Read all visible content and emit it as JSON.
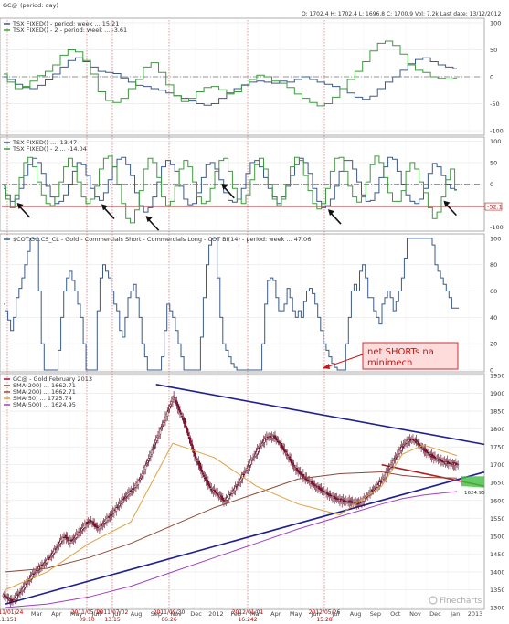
{
  "header": {
    "symbol": "GC@",
    "period_label": "(period: day)",
    "ohlc": "O: 1702.4   H: 1702.4   L: 1696.8   C: 1700.9   Vol: 7.2k   Last date: 13/12/2012"
  },
  "watermark": "Finecharts",
  "annotation": {
    "line1": "net SHORTs na",
    "line2": "minimech"
  },
  "colors": {
    "blue_line": "#3a5a8a",
    "green_line": "#3c9a3c",
    "red_line": "#b02020",
    "candle_up": "#ffffff",
    "candle_down": "#a0103a",
    "sma200": "#8b4a3a",
    "sma50": "#e0a040",
    "sma500": "#a040c0",
    "trend": "#202090",
    "box_fill": "#ffdcdc",
    "box_border": "#d03030",
    "green_box": "#40c040"
  },
  "x_labels": [
    "Mar",
    "Apr",
    "May",
    "Jun",
    "Jul",
    "Aug",
    "Sep",
    "Nov",
    "Dec",
    "2012",
    "Feb",
    "Mar",
    "Apr",
    "May",
    "Jun",
    "Jul",
    "Aug",
    "Sep",
    "Oct",
    "Nov",
    "Dec",
    "Jan",
    "2013"
  ],
  "date_labels": [
    {
      "line1": "2011/01/24",
      "line2": "11:151"
    },
    {
      "line1": "2011/05/16",
      "line2": "09:10"
    },
    {
      "line1": "2011/07/02",
      "line2": "13:15"
    },
    {
      "line1": "2011/09/30",
      "line2": "06:26"
    },
    {
      "line1": "2012/01/01",
      "line2": "16:242"
    },
    {
      "line1": "2012/05/26",
      "line2": "15:28"
    }
  ],
  "chart_data": [
    {
      "type": "line",
      "panel": "tsx_weekly",
      "legend": [
        "TSX FIXED() - period: week ... 15.21",
        "TSX FIXED() - 2 - period: week ... -3.61"
      ],
      "yticks": [
        100,
        50,
        0,
        -50,
        -100
      ],
      "ylim": [
        -105,
        105
      ],
      "reference_line": 0,
      "series": [
        {
          "name": "TSX FIXED()",
          "color": "#3a5a8a",
          "values": [
            0,
            -5,
            -14,
            -20,
            -22,
            -16,
            -6,
            5,
            18,
            30,
            35,
            28,
            18,
            10,
            8,
            6,
            -2,
            -10,
            -16,
            -18,
            -22,
            -25,
            -30,
            -35,
            -40,
            -45,
            -50,
            -53,
            -50,
            -40,
            -30,
            -22,
            -15,
            -10,
            -8,
            -10,
            -12,
            -8,
            -10,
            -5,
            0,
            -5,
            -10,
            -14,
            -18,
            -22,
            -30,
            -38,
            -42,
            -36,
            -22,
            -10,
            0,
            12,
            24,
            32,
            35,
            28,
            22,
            18,
            15
          ]
        },
        {
          "name": "TSX FIXED() - 2",
          "color": "#3c9a3c",
          "values": [
            5,
            -10,
            -22,
            -18,
            -8,
            2,
            10,
            22,
            40,
            50,
            46,
            30,
            5,
            -28,
            -44,
            -48,
            -40,
            -22,
            -5,
            18,
            26,
            8,
            -15,
            -35,
            -46,
            -40,
            -28,
            -20,
            -18,
            -24,
            -32,
            -28,
            -16,
            -5,
            3,
            0,
            -8,
            -12,
            -20,
            -32,
            -40,
            -48,
            -54,
            -50,
            -38,
            -22,
            -5,
            10,
            28,
            48,
            62,
            66,
            58,
            42,
            22,
            12,
            8,
            0,
            -3,
            -4,
            -3
          ]
        }
      ]
    },
    {
      "type": "line",
      "panel": "tsx_daily",
      "legend": [
        "TSX FIXED() ... -13.47",
        "TSX FIXED() - 2 ... -14.04"
      ],
      "yticks": [
        100,
        50,
        0,
        -50,
        -100
      ],
      "ylim": [
        -105,
        105
      ],
      "reference_line": 0,
      "threshold": -52.1,
      "threshold_label": "-52.1",
      "arrows_at_x": [
        2,
        13,
        19,
        29,
        43,
        58
      ],
      "series": [
        {
          "name": "TSX FIXED()",
          "color": "#3a5a8a",
          "values": [
            -10,
            -25,
            -40,
            -35,
            -10,
            20,
            45,
            60,
            50,
            25,
            -5,
            -30,
            -45,
            -40,
            -25,
            0,
            30,
            50,
            45,
            20,
            -10,
            -30,
            -38,
            -20,
            10,
            40,
            58,
            62,
            45,
            20,
            -20,
            -50,
            -65,
            -55,
            -30,
            5,
            40,
            55,
            45,
            30,
            -5,
            -35,
            -48,
            -45,
            -20,
            15,
            45,
            50,
            35,
            10,
            -20,
            -38,
            -42,
            -35,
            -10,
            25,
            50,
            55,
            40,
            15,
            -10,
            -30,
            -45,
            -30,
            -5,
            20,
            45,
            60,
            50,
            25,
            -10,
            -40,
            -55,
            -50,
            -35,
            -5,
            30,
            55,
            55,
            35,
            5,
            -25,
            -40,
            -38,
            -20,
            15,
            40,
            62,
            58,
            30,
            0,
            -25,
            -40,
            -45,
            -35,
            -10,
            25,
            48,
            40,
            20,
            0,
            -10,
            -13
          ]
        },
        {
          "name": "TSX FIXED() - 2",
          "color": "#3c9a3c",
          "values": [
            -5,
            -35,
            -55,
            -25,
            15,
            50,
            62,
            40,
            5,
            -25,
            -45,
            -50,
            -30,
            5,
            40,
            60,
            40,
            5,
            -30,
            -45,
            -35,
            -5,
            35,
            60,
            65,
            40,
            0,
            -45,
            -80,
            -90,
            -60,
            -15,
            35,
            60,
            50,
            15,
            -30,
            -50,
            -40,
            -5,
            35,
            55,
            40,
            5,
            -30,
            -45,
            -40,
            -10,
            30,
            55,
            60,
            30,
            -10,
            -35,
            -45,
            -25,
            10,
            45,
            60,
            35,
            0,
            -35,
            -50,
            -35,
            0,
            40,
            62,
            55,
            20,
            -15,
            -45,
            -58,
            -45,
            -10,
            30,
            60,
            62,
            30,
            -5,
            -30,
            -42,
            -30,
            5,
            45,
            65,
            50,
            15,
            -20,
            -40,
            -40,
            -15,
            30,
            50,
            35,
            5,
            -20,
            -55,
            -80,
            -65,
            -30,
            10,
            35,
            -14
          ]
        }
      ]
    },
    {
      "type": "line",
      "panel": "cot",
      "legend": [
        "$COT.GC.CS_CL - Gold - Commercials Short - Commercials Long - COT BI(14) - period: week ... 47.06"
      ],
      "yticks": [
        100,
        80,
        60,
        40,
        20,
        0
      ],
      "ylim": [
        0,
        102
      ],
      "series": [
        {
          "name": "$COT.GC.CS_CL",
          "color": "#3a5a8a",
          "values": [
            50,
            45,
            38,
            30,
            40,
            55,
            62,
            70,
            80,
            90,
            100,
            100,
            100,
            60,
            20,
            0,
            0,
            0,
            0,
            0,
            15,
            40,
            60,
            70,
            75,
            68,
            60,
            50,
            40,
            20,
            0,
            0,
            0,
            0,
            45,
            70,
            80,
            75,
            70,
            60,
            50,
            45,
            30,
            25,
            40,
            55,
            60,
            65,
            55,
            40,
            20,
            10,
            0,
            0,
            0,
            0,
            0,
            10,
            30,
            50,
            45,
            40,
            30,
            20,
            10,
            0,
            0,
            0,
            0,
            0,
            0,
            25,
            55,
            80,
            95,
            100,
            100,
            70,
            40,
            20,
            15,
            10,
            5,
            2,
            0,
            0,
            0,
            0,
            0,
            0,
            0,
            0,
            0,
            20,
            50,
            68,
            70,
            68,
            55,
            45,
            45,
            50,
            62,
            55,
            45,
            40,
            45,
            40,
            52,
            60,
            62,
            58,
            50,
            40,
            30,
            20,
            15,
            10,
            5,
            2,
            0,
            0,
            0,
            20,
            40,
            60,
            65,
            60,
            75,
            80,
            70,
            55,
            55,
            45,
            40,
            35,
            50,
            55,
            60,
            55,
            45,
            52,
            60,
            70,
            85,
            100,
            100,
            100,
            100,
            100,
            100,
            100,
            100,
            100,
            95,
            80,
            75,
            70,
            65,
            60,
            55,
            47,
            47,
            47
          ]
        }
      ]
    },
    {
      "type": "candlestick",
      "panel": "price",
      "legend": [
        "GC@ - Gold February 2013",
        "SMA(200) ... 1662.71",
        "SMA(200) ... 1662.71",
        "SMA(50) ... 1725.74",
        "SMA(500) ... 1624.95"
      ],
      "yticks": [
        1950,
        1900,
        1850,
        1800,
        1750,
        1700,
        1650,
        1600,
        1550,
        1500,
        1450,
        1400,
        1350,
        1300
      ],
      "ylim": [
        1300,
        1950
      ],
      "last_value_label": "1624.95",
      "close": [
        1330,
        1318,
        1326,
        1340,
        1356,
        1372,
        1388,
        1402,
        1415,
        1424,
        1436,
        1452,
        1470,
        1488,
        1500,
        1484,
        1492,
        1506,
        1520,
        1536,
        1544,
        1530,
        1522,
        1534,
        1548,
        1560,
        1574,
        1590,
        1604,
        1618,
        1630,
        1644,
        1662,
        1690,
        1718,
        1746,
        1776,
        1804,
        1832,
        1862,
        1892,
        1860,
        1834,
        1800,
        1762,
        1724,
        1700,
        1672,
        1650,
        1630,
        1622,
        1612,
        1598,
        1610,
        1624,
        1640,
        1660,
        1680,
        1700,
        1720,
        1740,
        1758,
        1774,
        1780,
        1778,
        1764,
        1748,
        1730,
        1710,
        1690,
        1678,
        1666,
        1656,
        1648,
        1640,
        1632,
        1624,
        1616,
        1610,
        1604,
        1600,
        1598,
        1596,
        1594,
        1590,
        1600,
        1610,
        1622,
        1634,
        1646,
        1660,
        1680,
        1700,
        1720,
        1740,
        1756,
        1768,
        1772,
        1764,
        1752,
        1740,
        1730,
        1722,
        1716,
        1710,
        1706,
        1704,
        1702,
        1701
      ],
      "series": [
        {
          "name": "SMA(200)",
          "color": "#8b4a3a",
          "x": [
            0,
            10,
            20,
            30,
            40,
            50,
            60,
            70,
            80,
            90,
            95,
            100,
            108
          ],
          "values": [
            1400,
            1410,
            1440,
            1480,
            1530,
            1580,
            1620,
            1660,
            1675,
            1680,
            1670,
            1665,
            1662.71
          ]
        },
        {
          "name": "SMA(50)",
          "color": "#e0a040",
          "x": [
            0,
            10,
            20,
            30,
            40,
            50,
            60,
            70,
            80,
            90,
            95,
            100,
            108
          ],
          "values": [
            1350,
            1400,
            1480,
            1540,
            1760,
            1720,
            1640,
            1590,
            1560,
            1640,
            1730,
            1755,
            1725.74
          ]
        },
        {
          "name": "SMA(500)",
          "color": "#a040c0",
          "x": [
            0,
            10,
            20,
            30,
            40,
            50,
            60,
            70,
            80,
            90,
            95,
            100,
            108
          ],
          "values": [
            1300,
            1310,
            1330,
            1360,
            1400,
            1440,
            1480,
            1520,
            1555,
            1590,
            1605,
            1615,
            1624.95
          ]
        }
      ],
      "trendlines": [
        {
          "color": "#202090",
          "x": [
            0,
            108
          ],
          "values": [
            1310,
            1660
          ]
        },
        {
          "color": "#202090",
          "x": [
            36,
            108
          ],
          "values": [
            1925,
            1770
          ]
        },
        {
          "color": "#b02020",
          "x": [
            90,
            108
          ],
          "values": [
            1700,
            1655
          ]
        }
      ]
    }
  ]
}
